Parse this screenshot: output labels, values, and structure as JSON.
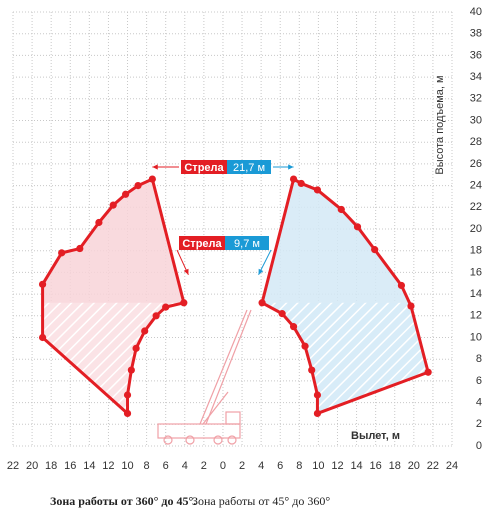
{
  "chart_data": {
    "type": "line",
    "xlabel": "Вылет, м",
    "ylabel": "Высота подъема, м",
    "xlim": [
      -22,
      24
    ],
    "ylim": [
      0,
      40
    ],
    "xticks": [
      {
        "value": -22,
        "label": "22"
      },
      {
        "value": -20,
        "label": "20"
      },
      {
        "value": -18,
        "label": "18"
      },
      {
        "value": -16,
        "label": "16"
      },
      {
        "value": -14,
        "label": "14"
      },
      {
        "value": -12,
        "label": "12"
      },
      {
        "value": -10,
        "label": "10"
      },
      {
        "value": -8,
        "label": "8"
      },
      {
        "value": -6,
        "label": "6"
      },
      {
        "value": -4,
        "label": "4"
      },
      {
        "value": -2,
        "label": "2"
      },
      0,
      2,
      4,
      6,
      8,
      10,
      12,
      14,
      16,
      18,
      20,
      22,
      24
    ],
    "yticks": [
      0,
      2,
      4,
      6,
      8,
      10,
      12,
      14,
      16,
      18,
      20,
      22,
      24,
      26,
      28,
      30,
      32,
      34,
      36,
      38,
      40
    ],
    "grid": true,
    "series": [
      {
        "color": "#e31e24",
        "fill": "#f8d4d8",
        "x": [
          -7.4,
          -8.9,
          -10.2,
          -11.5,
          -13,
          -15,
          -16.9,
          -18.9,
          -18.9,
          -10,
          -10,
          -9.6,
          -9.1,
          -8.2,
          -7,
          -6,
          -4.1
        ],
        "values": [
          24.6,
          24,
          23.2,
          22.2,
          20.6,
          18.2,
          17.8,
          14.9,
          10,
          3,
          4.7,
          7,
          9,
          10.6,
          12,
          12.8,
          13.2
        ]
      },
      {
        "color": "#e31e24",
        "fill": "#d3e9f6",
        "x": [
          7.4,
          8.2,
          9.9,
          12.4,
          14.1,
          15.9,
          18.7,
          19.7,
          21.5,
          9.9,
          9.9,
          9.3,
          8.6,
          7.4,
          6.2,
          4.1
        ],
        "values": [
          24.6,
          24.2,
          23.6,
          21.8,
          20.2,
          18.1,
          14.8,
          12.9,
          6.8,
          3,
          4.7,
          7,
          9.2,
          11,
          12.2,
          13.2
        ]
      }
    ],
    "annotations": [
      {
        "label": "Стрела",
        "value": "21,7 м"
      },
      {
        "label": "Стрела",
        "value": "9,7 м"
      }
    ],
    "caption": [
      {
        "text": "Зона работы от 360° до 45°.",
        "bold": true
      },
      {
        "text": "Зона работы от 45° до 360°"
      }
    ]
  }
}
